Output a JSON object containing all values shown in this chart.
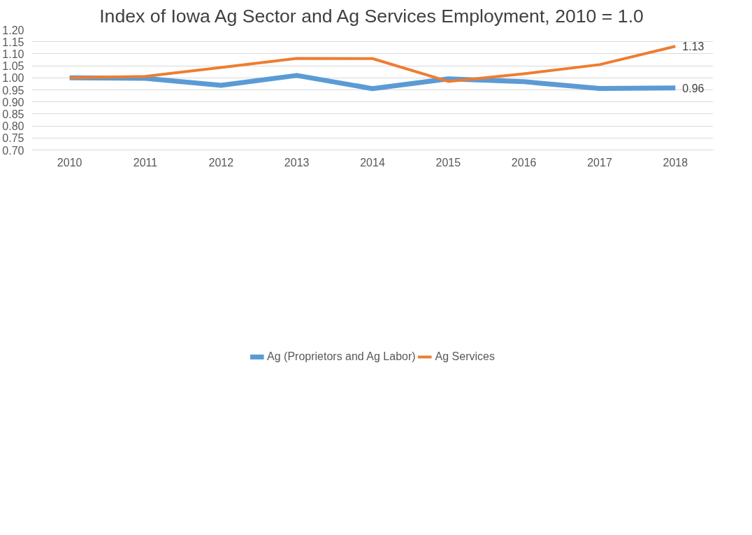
{
  "chart_data": {
    "type": "line",
    "title": "Index of Iowa Ag Sector and Ag Services Employment, 2010 = 1.0",
    "categories": [
      "2010",
      "2011",
      "2012",
      "2013",
      "2014",
      "2015",
      "2016",
      "2017",
      "2018"
    ],
    "series": [
      {
        "name": "Ag (Proprietors and Ag Labor)",
        "color": "#5b9bd5",
        "values": [
          1.0,
          0.998,
          0.969,
          1.01,
          0.955,
          0.996,
          0.984,
          0.956,
          0.958
        ],
        "value_labels": [
          null,
          null,
          null,
          null,
          null,
          null,
          null,
          null,
          "0.96"
        ]
      },
      {
        "name": "Ag Services",
        "color": "#ed7d31",
        "values": [
          1.0,
          1.006,
          1.043,
          1.081,
          1.08,
          0.985,
          1.017,
          1.055,
          1.131
        ],
        "value_labels": [
          null,
          null,
          null,
          null,
          null,
          null,
          null,
          null,
          "1.13"
        ]
      }
    ],
    "ylim": [
      0.7,
      1.2
    ],
    "yticks": [
      {
        "value": 0.7,
        "label": "0.70"
      },
      {
        "value": 0.75,
        "label": "0.75"
      },
      {
        "value": 0.8,
        "label": "0.80"
      },
      {
        "value": 0.85,
        "label": "0.85"
      },
      {
        "value": 0.9,
        "label": "0.90"
      },
      {
        "value": 0.95,
        "label": "0.95"
      },
      {
        "value": 1.0,
        "label": "1.00"
      },
      {
        "value": 1.05,
        "label": "1.05"
      },
      {
        "value": 1.1,
        "label": "1.10"
      },
      {
        "value": 1.15,
        "label": "1.15"
      },
      {
        "value": 1.2,
        "label": "1.20"
      }
    ],
    "grid": "y",
    "legend": "bottom",
    "marker": "none",
    "line_style": "solid"
  }
}
